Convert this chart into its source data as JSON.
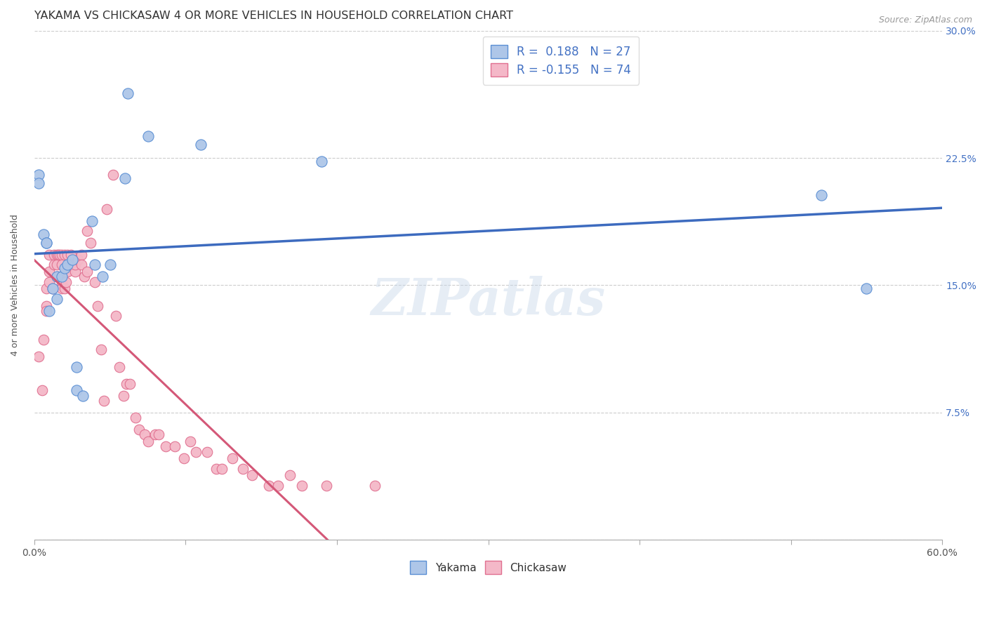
{
  "title": "YAKAMA VS CHICKASAW 4 OR MORE VEHICLES IN HOUSEHOLD CORRELATION CHART",
  "source": "Source: ZipAtlas.com",
  "ylabel": "4 or more Vehicles in Household",
  "watermark": "ZIPatlas",
  "xmin": 0.0,
  "xmax": 0.6,
  "ymin": 0.0,
  "ymax": 0.3,
  "yticks": [
    0.0,
    0.075,
    0.15,
    0.225,
    0.3
  ],
  "ytick_labels_right": [
    "",
    "7.5%",
    "15.0%",
    "22.5%",
    "30.0%"
  ],
  "xtick_labels": [
    "0.0%",
    "",
    "",
    "",
    "",
    "",
    "60.0%"
  ],
  "legend_yakama_label": "R =  0.188   N = 27",
  "legend_chickasaw_label": "R = -0.155   N = 74",
  "yakama_color": "#aec6e8",
  "chickasaw_color": "#f4b8c8",
  "yakama_edge_color": "#5b8fd4",
  "chickasaw_edge_color": "#e07090",
  "yakama_line_color": "#3d6bbf",
  "chickasaw_line_solid_color": "#d45878",
  "chickasaw_line_dashed_color": "#b0b8c8",
  "yakama_x": [
    0.003,
    0.003,
    0.006,
    0.008,
    0.008,
    0.01,
    0.012,
    0.015,
    0.015,
    0.018,
    0.02,
    0.022,
    0.025,
    0.028,
    0.028,
    0.032,
    0.038,
    0.04,
    0.045,
    0.05,
    0.06,
    0.062,
    0.075,
    0.11,
    0.19,
    0.52,
    0.55
  ],
  "yakama_y": [
    0.215,
    0.21,
    0.18,
    0.175,
    0.175,
    0.135,
    0.148,
    0.155,
    0.142,
    0.155,
    0.16,
    0.162,
    0.165,
    0.102,
    0.088,
    0.085,
    0.188,
    0.162,
    0.155,
    0.162,
    0.213,
    0.263,
    0.238,
    0.233,
    0.223,
    0.203,
    0.148
  ],
  "chickasaw_x": [
    0.003,
    0.005,
    0.006,
    0.008,
    0.008,
    0.008,
    0.01,
    0.01,
    0.01,
    0.012,
    0.012,
    0.013,
    0.013,
    0.015,
    0.015,
    0.015,
    0.016,
    0.016,
    0.017,
    0.018,
    0.018,
    0.018,
    0.018,
    0.02,
    0.02,
    0.021,
    0.021,
    0.022,
    0.022,
    0.024,
    0.024,
    0.027,
    0.027,
    0.029,
    0.031,
    0.031,
    0.033,
    0.035,
    0.035,
    0.037,
    0.04,
    0.042,
    0.044,
    0.046,
    0.048,
    0.052,
    0.054,
    0.056,
    0.059,
    0.061,
    0.063,
    0.067,
    0.069,
    0.073,
    0.075,
    0.08,
    0.082,
    0.087,
    0.093,
    0.099,
    0.103,
    0.107,
    0.114,
    0.12,
    0.124,
    0.131,
    0.138,
    0.144,
    0.155,
    0.161,
    0.169,
    0.177,
    0.193,
    0.225
  ],
  "chickasaw_y": [
    0.108,
    0.088,
    0.118,
    0.148,
    0.138,
    0.135,
    0.168,
    0.158,
    0.152,
    0.148,
    0.148,
    0.168,
    0.162,
    0.155,
    0.168,
    0.162,
    0.155,
    0.168,
    0.168,
    0.168,
    0.162,
    0.152,
    0.148,
    0.148,
    0.168,
    0.158,
    0.152,
    0.168,
    0.158,
    0.168,
    0.162,
    0.158,
    0.162,
    0.165,
    0.168,
    0.162,
    0.155,
    0.182,
    0.158,
    0.175,
    0.152,
    0.138,
    0.112,
    0.082,
    0.195,
    0.215,
    0.132,
    0.102,
    0.085,
    0.092,
    0.092,
    0.072,
    0.065,
    0.062,
    0.058,
    0.062,
    0.062,
    0.055,
    0.055,
    0.048,
    0.058,
    0.052,
    0.052,
    0.042,
    0.042,
    0.048,
    0.042,
    0.038,
    0.032,
    0.032,
    0.038,
    0.032,
    0.032,
    0.032
  ],
  "background_color": "#ffffff",
  "grid_color": "#cccccc",
  "title_fontsize": 11.5,
  "axis_label_fontsize": 9,
  "tick_fontsize": 10,
  "legend_fontsize": 12,
  "watermark_fontsize": 52,
  "watermark_color": "#c8d8ea",
  "watermark_alpha": 0.45
}
